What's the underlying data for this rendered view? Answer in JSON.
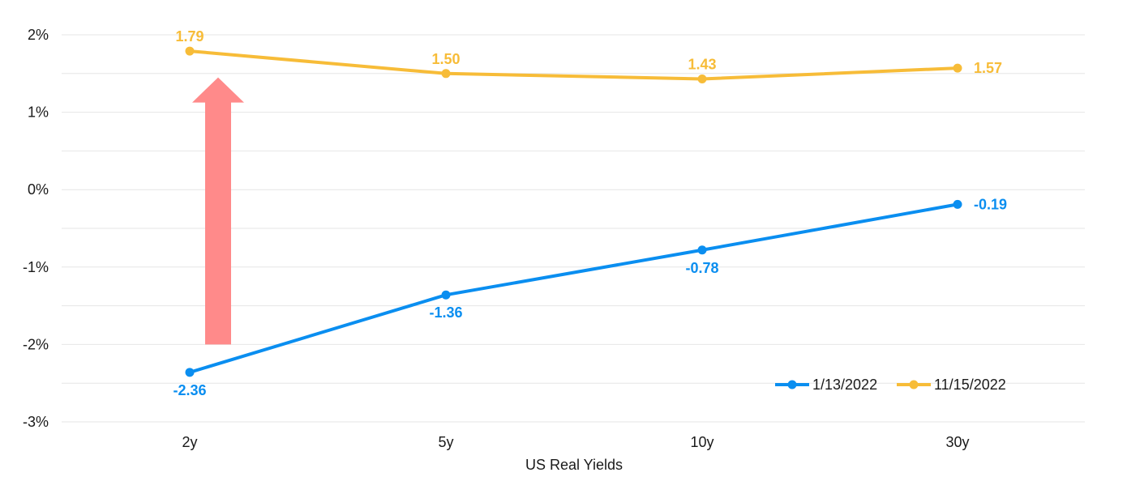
{
  "chart_data": {
    "type": "line",
    "xlabel": "US Real Yields",
    "ylabel": "",
    "categories": [
      "2y",
      "5y",
      "10y",
      "30y"
    ],
    "ylim": [
      -3,
      2
    ],
    "yticks": [
      "2%",
      "1%",
      "0%",
      "-1%",
      "-2%",
      "-3%"
    ],
    "grid": true,
    "legend_position": "bottom-right",
    "series": [
      {
        "name": "1/13/2022",
        "color": "#0a8ef0",
        "values": [
          -2.36,
          -1.36,
          -0.78,
          -0.19
        ],
        "labels": [
          "-2.36",
          "-1.36",
          "-0.78",
          "-0.19"
        ]
      },
      {
        "name": "11/15/2022",
        "color": "#f7bc38",
        "values": [
          1.79,
          1.5,
          1.43,
          1.57
        ],
        "labels": [
          "1.79",
          "1.50",
          "1.43",
          "1.57"
        ]
      }
    ],
    "annotation": {
      "type": "up-arrow",
      "color": "#ff8a8a",
      "category": "2y",
      "from": -2.0,
      "to": 1.45
    }
  }
}
